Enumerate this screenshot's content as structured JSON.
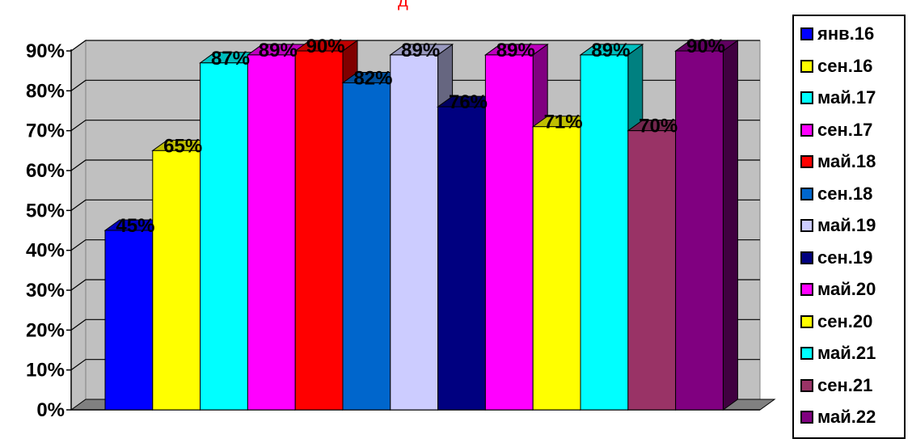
{
  "title_fragment": "д",
  "chart_data": {
    "type": "bar",
    "title": "",
    "xlabel": "",
    "ylabel": "",
    "ylim": [
      0,
      90
    ],
    "y_ticks": [
      "0%",
      "10%",
      "20%",
      "30%",
      "40%",
      "50%",
      "60%",
      "70%",
      "80%",
      "90%"
    ],
    "grid": true,
    "legend_position": "right",
    "categories": [
      "янв.16",
      "сен.16",
      "май.17",
      "сен.17",
      "май.18",
      "сен.18",
      "май.19",
      "сен.19",
      "май.20",
      "сен.20",
      "май.21",
      "сен.21",
      "май.22"
    ],
    "values": [
      45,
      65,
      87,
      89,
      90,
      82,
      89,
      76,
      89,
      71,
      89,
      70,
      90
    ],
    "data_labels": [
      "45%",
      "65%",
      "87%",
      "89%",
      "90%",
      "82%",
      "89%",
      "76%",
      "89%",
      "71%",
      "89%",
      "70%",
      "90%"
    ],
    "colors": [
      "#0000ff",
      "#ffff00",
      "#00ffff",
      "#ff00ff",
      "#ff0000",
      "#0066cc",
      "#ccccff",
      "#000080",
      "#ff00ff",
      "#ffff00",
      "#00ffff",
      "#993366",
      "#800080"
    ]
  }
}
